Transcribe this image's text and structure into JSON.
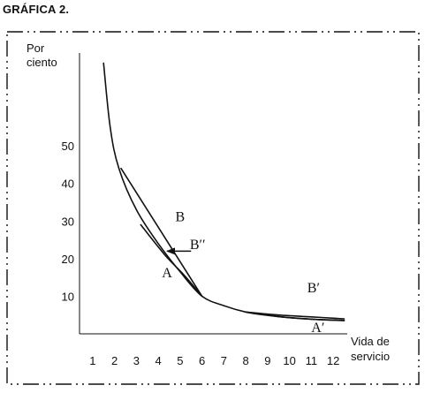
{
  "figure": {
    "title": "GRÁFICA 2."
  },
  "chart_data": {
    "type": "line",
    "title": "",
    "ylabel_lines": [
      "Por",
      "ciento"
    ],
    "xlabel_lines": [
      "Vida de",
      "servicio"
    ],
    "x_ticks": [
      1,
      2,
      3,
      4,
      5,
      6,
      7,
      8,
      9,
      10,
      11,
      12
    ],
    "y_ticks": [
      10,
      20,
      30,
      40,
      50
    ],
    "xlim": [
      0.4,
      12.6
    ],
    "ylim": [
      0,
      70
    ],
    "grid": false,
    "series": [
      {
        "points": [
          [
            1.5,
            72
          ],
          [
            1.8,
            55
          ],
          [
            2.2,
            44
          ],
          [
            3,
            33
          ],
          [
            4,
            24
          ],
          [
            5,
            16.5
          ],
          [
            6,
            10
          ],
          [
            7,
            7.5
          ],
          [
            8,
            5.8
          ],
          [
            9,
            4.9
          ],
          [
            10,
            4.3
          ],
          [
            11,
            3.9
          ],
          [
            12.5,
            3.6
          ]
        ]
      },
      {
        "points": [
          [
            2.3,
            44
          ],
          [
            6,
            10
          ]
        ]
      },
      {
        "points": [
          [
            3.2,
            29
          ],
          [
            4.3,
            21
          ],
          [
            5.2,
            15.5
          ],
          [
            6,
            10
          ]
        ]
      },
      {
        "points": [
          [
            8,
            5.8
          ],
          [
            9.5,
            5.0
          ],
          [
            11,
            4.5
          ],
          [
            12.5,
            4.0
          ]
        ]
      },
      {
        "points": [
          [
            8,
            5.8
          ],
          [
            9.5,
            4.6
          ],
          [
            11,
            3.9
          ],
          [
            12.5,
            3.5
          ]
        ]
      }
    ],
    "annotations": [
      {
        "text": "B",
        "x": 5.0,
        "y": 30.0
      },
      {
        "text": "B′′",
        "x": 5.8,
        "y": 22.5
      },
      {
        "text": "A",
        "x": 4.4,
        "y": 15.0
      },
      {
        "text": "B′",
        "x": 11.1,
        "y": 11.0
      },
      {
        "text": "A′",
        "x": 11.3,
        "y": 0.5
      }
    ],
    "arrow": {
      "from": [
        5.5,
        22.0
      ],
      "to": [
        4.4,
        22.0
      ]
    }
  }
}
